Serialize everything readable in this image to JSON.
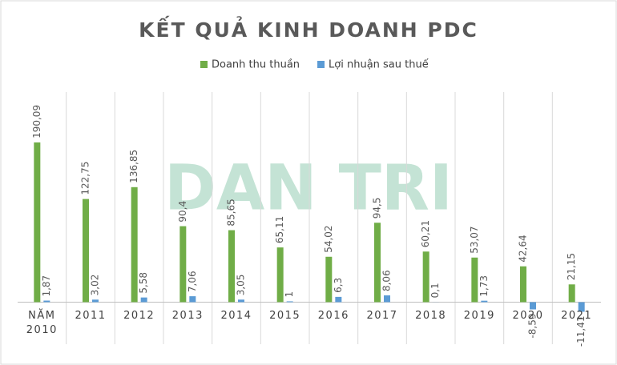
{
  "chart_data": {
    "type": "bar",
    "title": "KẾT QUẢ KINH DOANH PDC",
    "watermark": "DAN TRI",
    "categories": [
      "NĂM 2010",
      "2011",
      "2012",
      "2013",
      "2014",
      "2015",
      "2016",
      "2017",
      "2018",
      "2019",
      "2020",
      "2021"
    ],
    "series": [
      {
        "name": "Doanh thu thuần",
        "color": "#70ad47",
        "values": [
          190.09,
          122.75,
          136.85,
          90.4,
          85.65,
          65.11,
          54.02,
          94.5,
          60.21,
          53.07,
          42.64,
          21.15
        ],
        "value_labels": [
          "190,09",
          "122,75",
          "136,85",
          "90,4",
          "85,65",
          "65,11",
          "54,02",
          "94,5",
          "60,21",
          "53,07",
          "42,64",
          "21,15"
        ]
      },
      {
        "name": "Lợi nhuận sau thuế",
        "color": "#5b9bd5",
        "values": [
          1.87,
          3.02,
          5.58,
          7.06,
          3.05,
          1,
          6.3,
          8.06,
          0.1,
          1.73,
          -8.59,
          -11.41
        ],
        "value_labels": [
          "1,87",
          "3,02",
          "5,58",
          "7,06",
          "3,05",
          "1",
          "6,3",
          "8,06",
          "0,1",
          "1,73",
          "-8,59",
          "-11,41"
        ]
      }
    ],
    "ylim": [
      -50,
      250
    ],
    "legend": "top"
  }
}
